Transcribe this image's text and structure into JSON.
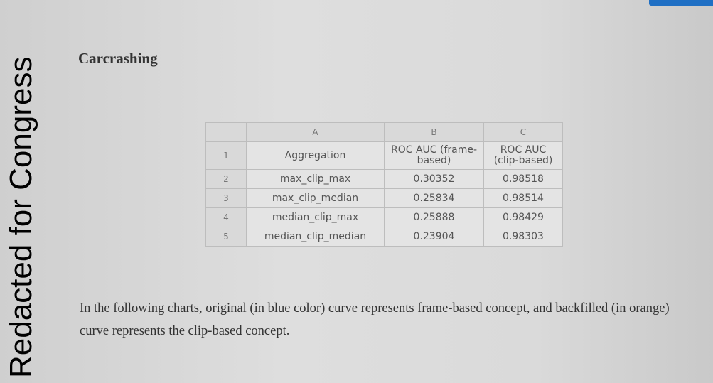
{
  "watermark": "Redacted for Congress",
  "heading": "Carcrashing",
  "table": {
    "column_letters": [
      "A",
      "B",
      "C"
    ],
    "row_numbers": [
      "1",
      "2",
      "3",
      "4",
      "5"
    ],
    "rows": [
      [
        "Aggregation",
        "ROC AUC (frame-based)",
        "ROC AUC (clip-based)"
      ],
      [
        "max_clip_max",
        "0.30352",
        "0.98518"
      ],
      [
        "max_clip_median",
        "0.25834",
        "0.98514"
      ],
      [
        "median_clip_max",
        "0.25888",
        "0.98429"
      ],
      [
        "median_clip_median",
        "0.23904",
        "0.98303"
      ]
    ]
  },
  "paragraph": "In the following charts, original (in blue color) curve represents frame-based concept, and backfilled (in orange) curve represents the clip-based concept."
}
